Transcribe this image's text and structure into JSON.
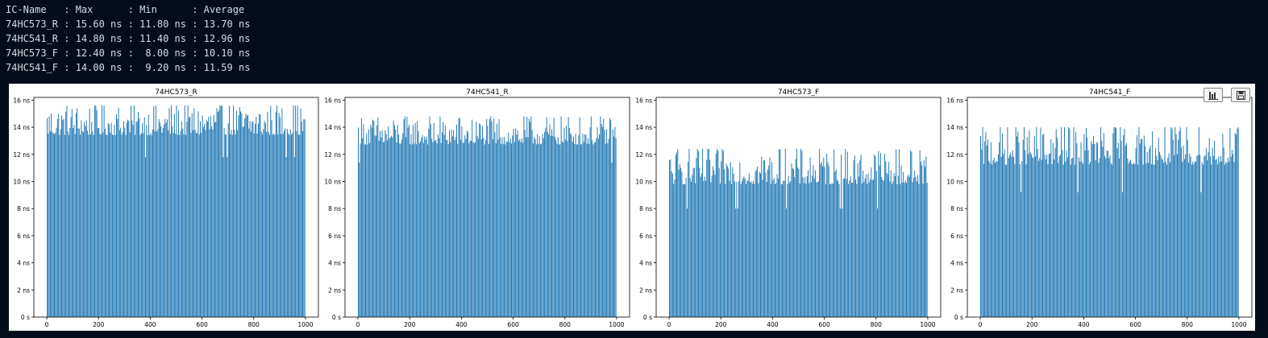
{
  "console": {
    "lines": [
      "IC-Name   : Max      : Min      : Average",
      "74HC573_R : 15.60 ns : 11.80 ns : 13.70 ns",
      "74HC541_R : 14.80 ns : 11.40 ns : 12.96 ns",
      "74HC573_F : 12.40 ns :  8.00 ns : 10.10 ns",
      "74HC541_F : 14.00 ns :  9.20 ns : 11.59 ns"
    ]
  },
  "toolbar": {
    "buttons": [
      {
        "icon": "bar-chart-icon"
      },
      {
        "icon": "save-icon"
      }
    ]
  },
  "colors": {
    "background": "#030d1a",
    "console_text": "#d6dbe2",
    "bar": "#1f77b4",
    "panel": "#ffffff"
  },
  "chart_data": [
    {
      "type": "bar",
      "title": "74HC573_R",
      "xlim": [
        -50,
        1050
      ],
      "ylim": [
        0,
        16.2
      ],
      "xticks": [
        0,
        200,
        400,
        600,
        800,
        1000
      ],
      "yticks": [
        0,
        2,
        4,
        6,
        8,
        10,
        12,
        14,
        16
      ],
      "xtick_labels": [
        "0",
        "200",
        "400",
        "600",
        "800",
        "1000"
      ],
      "ytick_labels": [
        "0 s",
        "2 ns",
        "4 ns",
        "6 ns",
        "8 ns",
        "10 ns",
        "12 ns",
        "14 ns",
        "16 ns"
      ],
      "n_samples": 1000,
      "min": 11.8,
      "max": 15.6,
      "average": 13.7
    },
    {
      "type": "bar",
      "title": "74HC541_R",
      "xlim": [
        -50,
        1050
      ],
      "ylim": [
        0,
        16.2
      ],
      "xticks": [
        0,
        200,
        400,
        600,
        800,
        1000
      ],
      "yticks": [
        0,
        2,
        4,
        6,
        8,
        10,
        12,
        14,
        16
      ],
      "xtick_labels": [
        "0",
        "200",
        "400",
        "600",
        "800",
        "1000"
      ],
      "ytick_labels": [
        "0 s",
        "2 ns",
        "4 ns",
        "6 ns",
        "8 ns",
        "10 ns",
        "12 ns",
        "14 ns",
        "16 ns"
      ],
      "n_samples": 1000,
      "min": 11.4,
      "max": 14.8,
      "average": 12.96
    },
    {
      "type": "bar",
      "title": "74HC573_F",
      "xlim": [
        -50,
        1050
      ],
      "ylim": [
        0,
        16.2
      ],
      "xticks": [
        0,
        200,
        400,
        600,
        800,
        1000
      ],
      "yticks": [
        0,
        2,
        4,
        6,
        8,
        10,
        12,
        14,
        16
      ],
      "xtick_labels": [
        "0",
        "200",
        "400",
        "600",
        "800",
        "1000"
      ],
      "ytick_labels": [
        "0 s",
        "2 ns",
        "4 ns",
        "6 ns",
        "8 ns",
        "10 ns",
        "12 ns",
        "14 ns",
        "16 ns"
      ],
      "n_samples": 1000,
      "min": 8.0,
      "max": 12.4,
      "average": 10.1
    },
    {
      "type": "bar",
      "title": "74HC541_F",
      "xlim": [
        -50,
        1050
      ],
      "ylim": [
        0,
        16.2
      ],
      "xticks": [
        0,
        200,
        400,
        600,
        800,
        1000
      ],
      "yticks": [
        0,
        2,
        4,
        6,
        8,
        10,
        12,
        14,
        16
      ],
      "xtick_labels": [
        "0",
        "200",
        "400",
        "600",
        "800",
        "1000"
      ],
      "ytick_labels": [
        "0 s",
        "2 ns",
        "4 ns",
        "6 ns",
        "8 ns",
        "10 ns",
        "12 ns",
        "14 ns",
        "16 ns"
      ],
      "n_samples": 1000,
      "min": 9.2,
      "max": 14.0,
      "average": 11.59
    }
  ]
}
